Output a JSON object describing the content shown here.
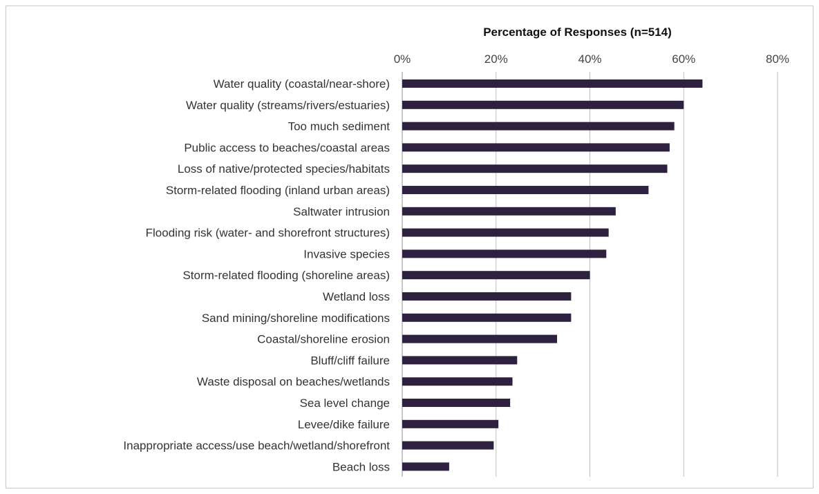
{
  "chart_data": {
    "type": "bar",
    "orientation": "horizontal",
    "title": "",
    "xlabel": "Percentage of Responses (n=514)",
    "xlabel_position": "top",
    "ylabel": "",
    "xlim": [
      0,
      80
    ],
    "xticks": [
      0,
      20,
      40,
      60,
      80
    ],
    "xtick_labels": [
      "0%",
      "20%",
      "40%",
      "60%",
      "80%"
    ],
    "grid": true,
    "legend": "none",
    "bar_color": "#2e2140",
    "categories": [
      "Water quality (coastal/near-shore)",
      "Water quality (streams/rivers/estuaries)",
      "Too much sediment",
      "Public access to beaches/coastal areas",
      "Loss of native/protected species/habitats",
      "Storm-related flooding (inland urban areas)",
      "Saltwater intrusion",
      "Flooding risk (water- and shorefront structures)",
      "Invasive species",
      "Storm-related flooding (shoreline areas)",
      "Wetland loss",
      "Sand mining/shoreline modifications",
      "Coastal/shoreline erosion",
      "Bluff/cliff failure",
      "Waste disposal on beaches/wetlands",
      "Sea level change",
      "Levee/dike failure",
      "Inappropriate access/use beach/wetland/shorefront",
      "Beach loss"
    ],
    "values": [
      64,
      60,
      58,
      57,
      56.5,
      52.5,
      45.5,
      44,
      43.5,
      40,
      36,
      36,
      33,
      24.5,
      23.5,
      23,
      20.5,
      19.5,
      10
    ]
  }
}
